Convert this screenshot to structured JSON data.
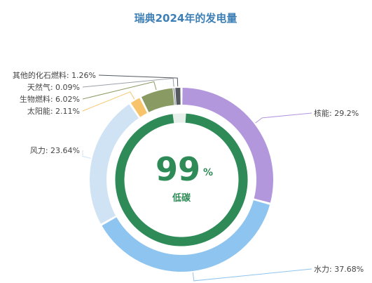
{
  "chart_data": {
    "type": "pie",
    "title": "瑞典2024年的发电量",
    "slices": [
      {
        "name": "核能",
        "value": 29.2,
        "color": "#b397dd"
      },
      {
        "name": "水力",
        "value": 37.68,
        "color": "#8ec4f0"
      },
      {
        "name": "风力",
        "value": 23.64,
        "color": "#cfe3f5"
      },
      {
        "name": "太阳能",
        "value": 2.11,
        "color": "#f7c46c"
      },
      {
        "name": "生物燃料",
        "value": 6.02,
        "color": "#8a9a63"
      },
      {
        "name": "天然气",
        "value": 0.09,
        "color": "#9aa0a6"
      },
      {
        "name": "其他的化石燃料",
        "value": 1.26,
        "color": "#555a60"
      }
    ],
    "labels": [
      "核能: 29.2%",
      "水力: 37.68%",
      "风力: 23.64%",
      "太阳能: 2.11%",
      "生物燃料: 6.02%",
      "天然气: 0.09%",
      "其他的化石燃料: 1.26%"
    ],
    "center": {
      "value": "99",
      "unit": "%",
      "label": "低碳",
      "fraction": 0.99
    }
  },
  "colors": {
    "title": "#3d7fb5",
    "center": "#2e8b57",
    "leader": "#aaaaaa"
  }
}
